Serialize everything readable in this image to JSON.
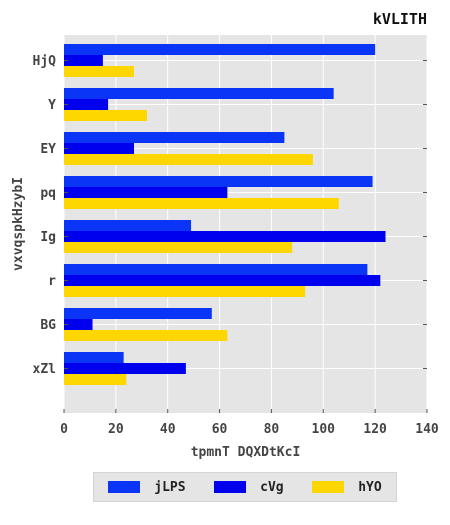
{
  "chart_data": {
    "type": "bar",
    "orientation": "horizontal",
    "title": "kVLITH",
    "xlabel": "tpmnT DQXDtKcI",
    "ylabel": "vxvqspkHzybI",
    "categories": [
      "HjQ",
      "Y",
      "EY",
      "pq",
      "Ig",
      "r",
      "BG",
      "xZl"
    ],
    "xlim": [
      0,
      140
    ],
    "xticks": [
      "0",
      "20",
      "40",
      "60",
      "80",
      "100",
      "120",
      "140"
    ],
    "grid": true,
    "legend_position": "bottom",
    "series": [
      {
        "name": "jLPS",
        "color": "#0a35f7",
        "values": [
          120,
          104,
          85,
          119,
          49,
          117,
          57,
          23
        ]
      },
      {
        "name": "cVg",
        "color": "#0000ee",
        "values": [
          15,
          17,
          27,
          63,
          124,
          122,
          11,
          47
        ]
      },
      {
        "name": "hYO",
        "color": "#ffd700",
        "values": [
          27,
          32,
          96,
          106,
          88,
          93,
          63,
          24
        ]
      }
    ]
  }
}
